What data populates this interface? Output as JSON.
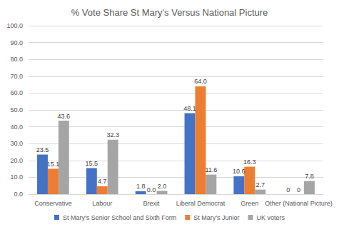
{
  "chart_data": {
    "type": "bar",
    "title": "% Vote Share St Mary's Versus National Picture",
    "categories": [
      "Conservative",
      "Labour",
      "Brexit",
      "Liberal Democrat",
      "Green",
      "Other (National Picture)"
    ],
    "series": [
      {
        "name": "St Mary's Senior School and Sixth Form",
        "color": "#4472c4",
        "values": [
          23.5,
          15.5,
          1.8,
          48.1,
          10.6,
          0
        ],
        "value_labels": [
          "23.5",
          "15.5",
          "1.8",
          "48.1",
          "10.6",
          "0"
        ]
      },
      {
        "name": "St Mary's Junior",
        "color": "#ed7d31",
        "values": [
          15.1,
          4.7,
          0,
          64,
          16.3,
          0
        ],
        "value_labels": [
          "15.1",
          "4.7",
          "0.0",
          "64.0",
          "16.3",
          "0"
        ]
      },
      {
        "name": "UK voters",
        "color": "#a5a5a5",
        "values": [
          43.6,
          32.3,
          2,
          11.6,
          2.7,
          7.8
        ],
        "value_labels": [
          "43.6",
          "32.3",
          "2.0",
          "11.6",
          "2.7",
          "7.8"
        ]
      }
    ],
    "ylim": [
      0,
      100
    ],
    "yticks": [
      {
        "value": 0,
        "label": "0.0"
      },
      {
        "value": 10,
        "label": "10.0"
      },
      {
        "value": 20,
        "label": "20.0"
      },
      {
        "value": 30,
        "label": "30.0"
      },
      {
        "value": 40,
        "label": "40.0"
      },
      {
        "value": 50,
        "label": "50.0"
      },
      {
        "value": 60,
        "label": "60.0"
      },
      {
        "value": 70,
        "label": "70.0"
      },
      {
        "value": 80,
        "label": "80.0"
      },
      {
        "value": 90,
        "label": "90.0"
      },
      {
        "value": 100,
        "label": "100.0"
      }
    ],
    "grid": true,
    "legend": "bottom",
    "data_labels": true
  }
}
